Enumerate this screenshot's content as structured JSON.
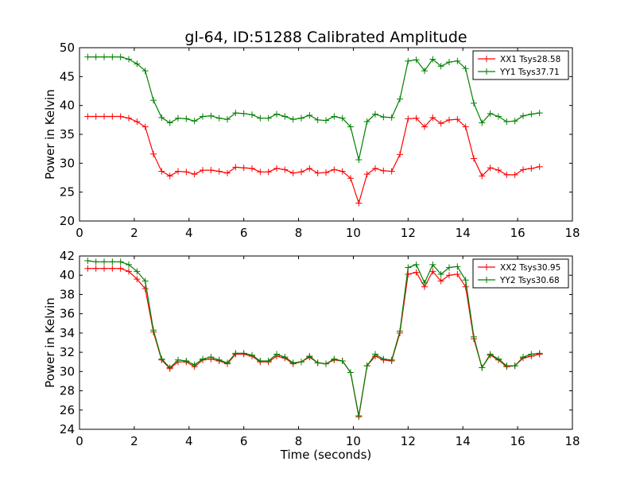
{
  "figure": {
    "title": "gl-64, ID:51288 Calibrated Amplitude"
  },
  "chart_data": [
    {
      "type": "line",
      "title": "gl-64, ID:51288 Calibrated Amplitude",
      "xlabel": "",
      "ylabel": "Power in Kelvin",
      "xlim": [
        0,
        18
      ],
      "ylim": [
        20,
        50
      ],
      "xticks": [
        0,
        2,
        4,
        6,
        8,
        10,
        12,
        14,
        16,
        18
      ],
      "yticks": [
        20,
        25,
        30,
        35,
        40,
        45,
        50
      ],
      "grid": false,
      "legend": "top-right",
      "x": [
        0.3,
        0.6,
        0.9,
        1.2,
        1.5,
        1.8,
        2.1,
        2.4,
        2.7,
        3.0,
        3.3,
        3.6,
        3.9,
        4.2,
        4.5,
        4.8,
        5.1,
        5.4,
        5.7,
        6.0,
        6.3,
        6.6,
        6.9,
        7.2,
        7.5,
        7.8,
        8.1,
        8.4,
        8.7,
        9.0,
        9.3,
        9.6,
        9.9,
        10.2,
        10.5,
        10.8,
        11.1,
        11.4,
        11.7,
        12.0,
        12.3,
        12.6,
        12.9,
        13.2,
        13.5,
        13.8,
        14.1,
        14.4,
        14.7,
        15.0,
        15.3,
        15.6,
        15.9,
        16.2,
        16.5,
        16.8
      ],
      "series": [
        {
          "name": "XX1 Tsys28.58",
          "color": "#ff0000",
          "values": [
            38.1,
            38.1,
            38.1,
            38.1,
            38.1,
            37.8,
            37.2,
            36.3,
            31.6,
            28.6,
            27.8,
            28.6,
            28.5,
            28.1,
            28.8,
            28.8,
            28.6,
            28.3,
            29.3,
            29.2,
            29.1,
            28.5,
            28.5,
            29.1,
            28.9,
            28.3,
            28.5,
            29.1,
            28.3,
            28.4,
            28.9,
            28.6,
            27.4,
            23.1,
            28.1,
            29.1,
            28.7,
            28.6,
            31.5,
            37.7,
            37.8,
            36.3,
            37.9,
            36.9,
            37.5,
            37.6,
            36.3,
            30.8,
            27.8,
            29.2,
            28.8,
            28.0,
            28.0,
            28.9,
            29.1,
            29.4
          ]
        },
        {
          "name": "YY1 Tsys37.71",
          "color": "#008000",
          "values": [
            48.4,
            48.4,
            48.4,
            48.4,
            48.4,
            48.0,
            47.2,
            46.0,
            40.9,
            37.9,
            37.0,
            37.8,
            37.7,
            37.3,
            38.1,
            38.2,
            37.8,
            37.6,
            38.7,
            38.6,
            38.4,
            37.8,
            37.8,
            38.5,
            38.1,
            37.6,
            37.8,
            38.3,
            37.5,
            37.4,
            38.1,
            37.8,
            36.3,
            30.6,
            37.2,
            38.5,
            38.0,
            37.9,
            41.1,
            47.7,
            47.9,
            46.0,
            48.0,
            46.8,
            47.5,
            47.7,
            46.4,
            40.4,
            37.0,
            38.6,
            38.1,
            37.2,
            37.3,
            38.2,
            38.5,
            38.7
          ]
        }
      ]
    },
    {
      "type": "line",
      "title": "",
      "xlabel": "Time (seconds)",
      "ylabel": "Power in Kelvin",
      "xlim": [
        0,
        18
      ],
      "ylim": [
        24,
        42
      ],
      "xticks": [
        0,
        2,
        4,
        6,
        8,
        10,
        12,
        14,
        16,
        18
      ],
      "yticks": [
        24,
        26,
        28,
        30,
        32,
        34,
        36,
        38,
        40,
        42
      ],
      "grid": false,
      "legend": "top-right",
      "x": [
        0.3,
        0.6,
        0.9,
        1.2,
        1.5,
        1.8,
        2.1,
        2.4,
        2.7,
        3.0,
        3.3,
        3.6,
        3.9,
        4.2,
        4.5,
        4.8,
        5.1,
        5.4,
        5.7,
        6.0,
        6.3,
        6.6,
        6.9,
        7.2,
        7.5,
        7.8,
        8.1,
        8.4,
        8.7,
        9.0,
        9.3,
        9.6,
        9.9,
        10.2,
        10.5,
        10.8,
        11.1,
        11.4,
        11.7,
        12.0,
        12.3,
        12.6,
        12.9,
        13.2,
        13.5,
        13.8,
        14.1,
        14.4,
        14.7,
        15.0,
        15.3,
        15.6,
        15.9,
        16.2,
        16.5,
        16.8
      ],
      "series": [
        {
          "name": "XX2 Tsys30.95",
          "color": "#ff0000",
          "values": [
            40.7,
            40.7,
            40.7,
            40.7,
            40.7,
            40.4,
            39.6,
            38.6,
            34.1,
            31.2,
            30.3,
            31.0,
            31.0,
            30.5,
            31.2,
            31.3,
            31.1,
            30.8,
            31.8,
            31.8,
            31.6,
            31.0,
            31.0,
            31.6,
            31.4,
            30.8,
            31.0,
            31.5,
            30.9,
            30.8,
            31.2,
            31.1,
            29.9,
            25.3,
            30.6,
            31.6,
            31.2,
            31.1,
            34.0,
            40.1,
            40.3,
            38.8,
            40.4,
            39.4,
            40.0,
            40.1,
            38.8,
            33.4,
            30.4,
            31.7,
            31.2,
            30.5,
            30.6,
            31.4,
            31.6,
            31.8
          ]
        },
        {
          "name": "YY2 Tsys30.68",
          "color": "#008000",
          "values": [
            41.5,
            41.4,
            41.4,
            41.4,
            41.4,
            41.1,
            40.4,
            39.4,
            34.3,
            31.3,
            30.4,
            31.2,
            31.1,
            30.7,
            31.3,
            31.5,
            31.2,
            30.9,
            31.9,
            31.9,
            31.7,
            31.1,
            31.1,
            31.8,
            31.5,
            30.9,
            31.0,
            31.6,
            30.9,
            30.8,
            31.3,
            31.1,
            29.9,
            25.4,
            30.6,
            31.8,
            31.3,
            31.2,
            34.2,
            40.8,
            41.1,
            39.2,
            41.1,
            40.1,
            40.8,
            40.9,
            39.5,
            33.6,
            30.4,
            31.8,
            31.3,
            30.6,
            30.6,
            31.5,
            31.8,
            31.9
          ]
        }
      ]
    }
  ]
}
